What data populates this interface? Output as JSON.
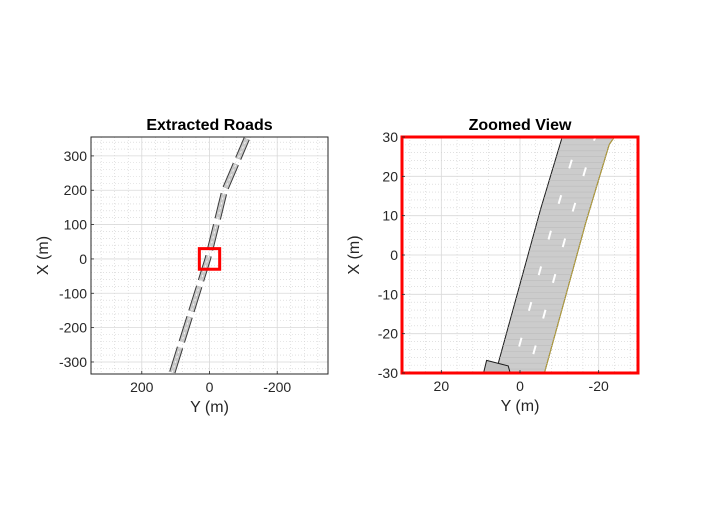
{
  "chart_data": [
    {
      "type": "map",
      "title": "Extracted Roads",
      "xlabel": "Y (m)",
      "ylabel": "X (m)",
      "xlim": [
        350,
        -350
      ],
      "ylim": [
        -335,
        355
      ],
      "x_reversed": true,
      "xticks": [
        200,
        0,
        -200
      ],
      "yticks": [
        -300,
        -200,
        -100,
        0,
        100,
        200,
        300
      ],
      "grid": true,
      "road_centerline": [
        {
          "y": 110,
          "x": -330
        },
        {
          "y": 75,
          "x": -220
        },
        {
          "y": 40,
          "x": -110
        },
        {
          "y": 5,
          "x": 0
        },
        {
          "y": -20,
          "x": 100
        },
        {
          "y": -45,
          "x": 200
        },
        {
          "y": -110,
          "x": 350
        }
      ],
      "zoom_box": {
        "y_range": [
          -30,
          30
        ],
        "x_range": [
          -30,
          30
        ],
        "color": "#ff0000"
      }
    },
    {
      "type": "map",
      "title": "Zoomed View",
      "xlabel": "Y (m)",
      "ylabel": "X (m)",
      "xlim": [
        30,
        -30
      ],
      "ylim": [
        -30,
        30
      ],
      "x_reversed": true,
      "xticks": [
        20,
        0,
        -20
      ],
      "yticks": [
        -30,
        -20,
        -10,
        0,
        10,
        20,
        30
      ],
      "grid": true,
      "axes_border_color": "#ff0000",
      "road_centerline": [
        {
          "y": 0,
          "x": -30
        },
        {
          "y": -5.5,
          "x": -10
        },
        {
          "y": -11,
          "x": 10
        },
        {
          "y": -17,
          "x": 30
        }
      ],
      "road_width": 12,
      "lane_count": 3
    }
  ]
}
